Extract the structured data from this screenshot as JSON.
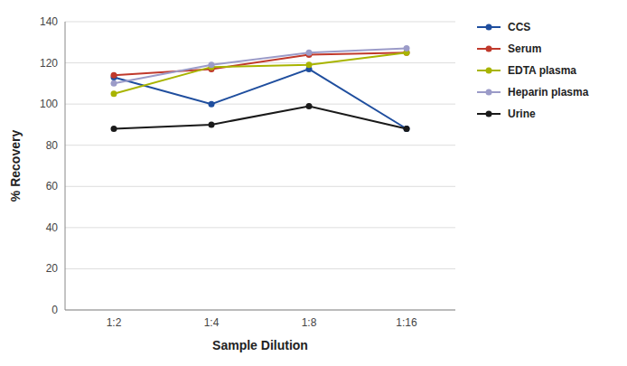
{
  "chart_data": {
    "type": "line",
    "xlabel": "Sample Dilution",
    "ylabel": "% Recovery",
    "categories": [
      "1:2",
      "1:4",
      "1:8",
      "1:16"
    ],
    "series": [
      {
        "name": "CCS",
        "color": "#1f4e9e",
        "values": [
          113,
          100,
          117,
          88
        ]
      },
      {
        "name": "Serum",
        "color": "#c0392b",
        "values": [
          114,
          117,
          124,
          125
        ]
      },
      {
        "name": "EDTA plasma",
        "color": "#a8b400",
        "values": [
          105,
          118,
          119,
          125
        ]
      },
      {
        "name": "Heparin plasma",
        "color": "#9b9bc8",
        "values": [
          110,
          119,
          125,
          127
        ]
      },
      {
        "name": "Urine",
        "color": "#1a1a1a",
        "values": [
          88,
          90,
          99,
          88
        ]
      }
    ],
    "ylim": [
      0,
      140
    ],
    "yticks": [
      0,
      20,
      40,
      60,
      80,
      100,
      120,
      140
    ],
    "grid": true,
    "legend": "right",
    "marker": "circle"
  }
}
